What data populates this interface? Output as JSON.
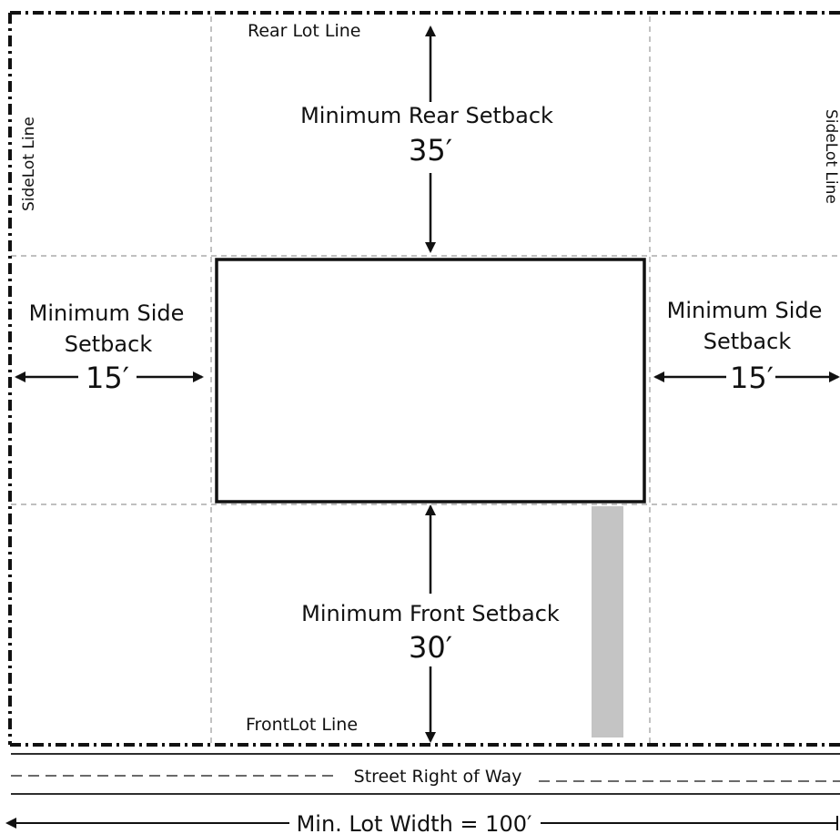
{
  "labels": {
    "rear_lot_line": "Rear Lot Line",
    "front_lot_line": "FrontLot Line",
    "side_lot_line_left": "SideLot Line",
    "side_lot_line_right": "SideLot Line",
    "rear_setback_title": "Minimum Rear Setback",
    "rear_setback_value": "35′",
    "front_setback_title": "Minimum Front Setback",
    "front_setback_value": "30′",
    "left_side_setback_line1": "Minimum Side",
    "left_side_setback_line2": "Setback",
    "left_side_setback_value": "15′",
    "right_side_setback_line1": "Minimum Side",
    "right_side_setback_line2": "Setback",
    "right_side_setback_value": "15′",
    "street_right_of_way": "Street Right of Way",
    "min_lot_width": "Min. Lot Width = 100′"
  },
  "colors": {
    "line": "#111111",
    "guide": "#9a9a9a",
    "driveway": "#c4c4c4",
    "background": "#ffffff"
  }
}
